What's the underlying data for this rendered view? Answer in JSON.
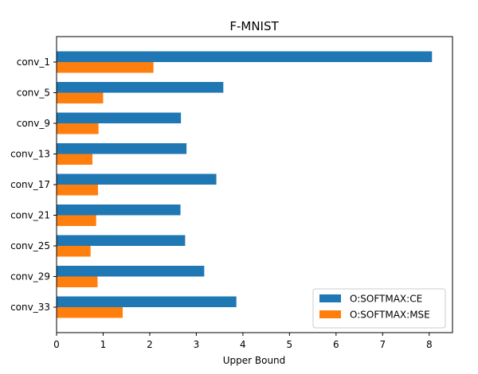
{
  "chart_data": {
    "type": "bar",
    "orientation": "horizontal",
    "title": "F-MNIST",
    "xlabel": "Upper Bound",
    "ylabel": "",
    "xlim": [
      0,
      8.5
    ],
    "xticks": [
      0,
      1,
      2,
      3,
      4,
      5,
      6,
      7,
      8
    ],
    "categories": [
      "conv_1",
      "conv_5",
      "conv_9",
      "conv_13",
      "conv_17",
      "conv_21",
      "conv_25",
      "conv_29",
      "conv_33"
    ],
    "series": [
      {
        "name": "O:SOFTMAX:CE",
        "color": "#1f77b4",
        "values": [
          8.06,
          3.58,
          2.67,
          2.79,
          3.43,
          2.66,
          2.76,
          3.17,
          3.86
        ]
      },
      {
        "name": "O:SOFTMAX:MSE",
        "color": "#ff7f0e",
        "values": [
          2.08,
          1.0,
          0.9,
          0.77,
          0.89,
          0.85,
          0.73,
          0.88,
          1.42
        ]
      }
    ],
    "grid": false,
    "legend_position": "lower right"
  }
}
